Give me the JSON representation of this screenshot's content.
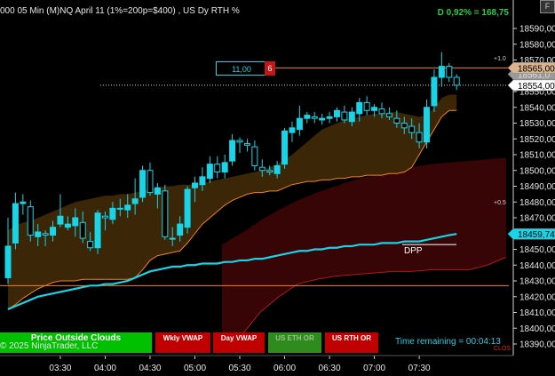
{
  "header": {
    "title": "000 05 Min (M)NQ  April 11 (1%=200p=$400) , US Dy RTH %",
    "pnl": "D 0,92% = 168,75",
    "menu_label": "F"
  },
  "buttons": {
    "price_outside_clouds": "Price Outside Clouds",
    "wkly_vwap": "Wkly VWAP",
    "day_vwap": "Day VWAP",
    "us_eth_or": "US ETH OR",
    "us_rth_or": "US RTH OR"
  },
  "copyright": "© 2025 NinjaTrader, LLC",
  "time_remaining": "Time remaining = 00:04:13",
  "order": {
    "price": "11,00",
    "qty": "6"
  },
  "colors": {
    "background": "#000000",
    "bull_candle": "#19d4e6",
    "bear_candle": "#006a6a",
    "cloud_fill": "#3b2608",
    "cloud_line": "#f5821f",
    "red_cloud": "#3a0505",
    "vwap_line": "#19d4e6",
    "orange_line": "#f5821f",
    "price_label_bg": "#d9b48f"
  },
  "chart_data": {
    "type": "candlestick",
    "title": "000 05 Min (M)NQ  April 11 (1%=200p=$400) , US Dy RTH %",
    "ylim": [
      18383,
      18598
    ],
    "y_ticks": [
      18390,
      18400,
      18410,
      18420,
      18430,
      18440,
      18450,
      18460,
      18470,
      18480,
      18490,
      18500,
      18510,
      18520,
      18530,
      18540,
      18550,
      18560,
      18570,
      18580,
      18590
    ],
    "x_ticks": [
      "03:30",
      "04:00",
      "04:30",
      "05:00",
      "05:30",
      "06:00",
      "06:30",
      "07:00",
      "07:30"
    ],
    "candles": [
      {
        "t": "02:55",
        "o": 18432,
        "h": 18470,
        "l": 18428,
        "c": 18452
      },
      {
        "t": "03:00",
        "o": 18454,
        "h": 18486,
        "l": 18450,
        "c": 18479
      },
      {
        "t": "03:05",
        "o": 18479,
        "h": 18485,
        "l": 18472,
        "c": 18480
      },
      {
        "t": "03:10",
        "o": 18477,
        "h": 18481,
        "l": 18455,
        "c": 18459
      },
      {
        "t": "03:15",
        "o": 18458,
        "h": 18466,
        "l": 18452,
        "c": 18461
      },
      {
        "t": "03:20",
        "o": 18460,
        "h": 18462,
        "l": 18452,
        "c": 18459
      },
      {
        "t": "03:25",
        "o": 18459,
        "h": 18468,
        "l": 18455,
        "c": 18464
      },
      {
        "t": "03:30",
        "o": 18466,
        "h": 18485,
        "l": 18464,
        "c": 18471
      },
      {
        "t": "03:35",
        "o": 18464,
        "h": 18471,
        "l": 18462,
        "c": 18466
      },
      {
        "t": "03:40",
        "o": 18465,
        "h": 18476,
        "l": 18458,
        "c": 18470
      },
      {
        "t": "03:45",
        "o": 18467,
        "h": 18474,
        "l": 18454,
        "c": 18457
      },
      {
        "t": "03:50",
        "o": 18455,
        "h": 18461,
        "l": 18449,
        "c": 18451
      },
      {
        "t": "03:55",
        "o": 18451,
        "h": 18475,
        "l": 18447,
        "c": 18473
      },
      {
        "t": "04:00",
        "o": 18471,
        "h": 18474,
        "l": 18462,
        "c": 18470
      },
      {
        "t": "04:05",
        "o": 18469,
        "h": 18480,
        "l": 18466,
        "c": 18476
      },
      {
        "t": "04:10",
        "o": 18476,
        "h": 18482,
        "l": 18471,
        "c": 18476
      },
      {
        "t": "04:15",
        "o": 18475,
        "h": 18485,
        "l": 18470,
        "c": 18478
      },
      {
        "t": "04:20",
        "o": 18479,
        "h": 18495,
        "l": 18472,
        "c": 18482
      },
      {
        "t": "04:25",
        "o": 18483,
        "h": 18503,
        "l": 18480,
        "c": 18500
      },
      {
        "t": "04:30",
        "o": 18500,
        "h": 18505,
        "l": 18484,
        "c": 18486
      },
      {
        "t": "04:35",
        "o": 18485,
        "h": 18492,
        "l": 18476,
        "c": 18489
      },
      {
        "t": "04:40",
        "o": 18487,
        "h": 18491,
        "l": 18456,
        "c": 18458
      },
      {
        "t": "04:45",
        "o": 18457,
        "h": 18464,
        "l": 18452,
        "c": 18457
      },
      {
        "t": "04:50",
        "o": 18459,
        "h": 18471,
        "l": 18455,
        "c": 18466
      },
      {
        "t": "04:55",
        "o": 18464,
        "h": 18490,
        "l": 18460,
        "c": 18488
      },
      {
        "t": "05:00",
        "o": 18489,
        "h": 18496,
        "l": 18480,
        "c": 18492
      },
      {
        "t": "05:05",
        "o": 18491,
        "h": 18502,
        "l": 18487,
        "c": 18496
      },
      {
        "t": "05:10",
        "o": 18495,
        "h": 18509,
        "l": 18492,
        "c": 18504
      },
      {
        "t": "05:15",
        "o": 18504,
        "h": 18509,
        "l": 18495,
        "c": 18499
      },
      {
        "t": "05:20",
        "o": 18499,
        "h": 18510,
        "l": 18495,
        "c": 18505
      },
      {
        "t": "05:25",
        "o": 18506,
        "h": 18523,
        "l": 18503,
        "c": 18519
      },
      {
        "t": "05:30",
        "o": 18519,
        "h": 18521,
        "l": 18511,
        "c": 18518
      },
      {
        "t": "05:35",
        "o": 18517,
        "h": 18520,
        "l": 18512,
        "c": 18516
      },
      {
        "t": "05:40",
        "o": 18515,
        "h": 18519,
        "l": 18500,
        "c": 18503
      },
      {
        "t": "05:45",
        "o": 18502,
        "h": 18507,
        "l": 18496,
        "c": 18500
      },
      {
        "t": "05:50",
        "o": 18500,
        "h": 18503,
        "l": 18497,
        "c": 18499
      },
      {
        "t": "05:55",
        "o": 18498,
        "h": 18506,
        "l": 18495,
        "c": 18503
      },
      {
        "t": "06:00",
        "o": 18504,
        "h": 18527,
        "l": 18501,
        "c": 18525
      },
      {
        "t": "06:05",
        "o": 18524,
        "h": 18531,
        "l": 18518,
        "c": 18527
      },
      {
        "t": "06:10",
        "o": 18526,
        "h": 18541,
        "l": 18522,
        "c": 18533
      },
      {
        "t": "06:15",
        "o": 18533,
        "h": 18537,
        "l": 18530,
        "c": 18535
      },
      {
        "t": "06:20",
        "o": 18534,
        "h": 18537,
        "l": 18530,
        "c": 18533
      },
      {
        "t": "06:25",
        "o": 18532,
        "h": 18536,
        "l": 18529,
        "c": 18533
      },
      {
        "t": "06:30",
        "o": 18533,
        "h": 18537,
        "l": 18530,
        "c": 18534
      },
      {
        "t": "06:35",
        "o": 18534,
        "h": 18540,
        "l": 18531,
        "c": 18538
      },
      {
        "t": "06:40",
        "o": 18537,
        "h": 18541,
        "l": 18530,
        "c": 18532
      },
      {
        "t": "06:45",
        "o": 18531,
        "h": 18540,
        "l": 18528,
        "c": 18537
      },
      {
        "t": "06:50",
        "o": 18536,
        "h": 18546,
        "l": 18531,
        "c": 18543
      },
      {
        "t": "06:55",
        "o": 18543,
        "h": 18547,
        "l": 18535,
        "c": 18538
      },
      {
        "t": "07:00",
        "o": 18538,
        "h": 18542,
        "l": 18534,
        "c": 18540
      },
      {
        "t": "07:05",
        "o": 18539,
        "h": 18543,
        "l": 18533,
        "c": 18536
      },
      {
        "t": "07:10",
        "o": 18536,
        "h": 18540,
        "l": 18532,
        "c": 18534
      },
      {
        "t": "07:15",
        "o": 18533,
        "h": 18538,
        "l": 18527,
        "c": 18530
      },
      {
        "t": "07:20",
        "o": 18530,
        "h": 18534,
        "l": 18523,
        "c": 18527
      },
      {
        "t": "07:25",
        "o": 18528,
        "h": 18533,
        "l": 18520,
        "c": 18524
      },
      {
        "t": "07:30",
        "o": 18524,
        "h": 18530,
        "l": 18514,
        "c": 18518
      },
      {
        "t": "07:35",
        "o": 18518,
        "h": 18545,
        "l": 18514,
        "c": 18540
      },
      {
        "t": "07:40",
        "o": 18541,
        "h": 18564,
        "l": 18537,
        "c": 18559
      },
      {
        "t": "07:45",
        "o": 18559,
        "h": 18575,
        "l": 18553,
        "c": 18566
      },
      {
        "t": "07:50",
        "o": 18566,
        "h": 18568,
        "l": 18556,
        "c": 18559
      },
      {
        "t": "07:55",
        "o": 18559,
        "h": 18561,
        "l": 18551,
        "c": 18554
      }
    ],
    "cloud_upper": [
      18462,
      18465,
      18467,
      18468,
      18470,
      18472,
      18474,
      18476,
      18478,
      18480,
      18481,
      18482,
      18483,
      18484,
      18484,
      18485,
      18485,
      18486,
      18487,
      18488,
      18489,
      18490,
      18490,
      18491,
      18491,
      18491,
      18492,
      18493,
      18494,
      18495,
      18496,
      18497,
      18498,
      18499,
      18500,
      18502,
      18504,
      18507,
      18510,
      18514,
      18518,
      18522,
      18526,
      18528,
      18530,
      18532,
      18533,
      18534,
      18535,
      18536,
      18536,
      18537,
      18537,
      18536,
      18535,
      18534,
      18535,
      18540,
      18546,
      18548,
      18548
    ],
    "cloud_lower": [
      18412,
      18415,
      18419,
      18422,
      18425,
      18427,
      18429,
      18430,
      18430,
      18430,
      18431,
      18431,
      18431,
      18431,
      18431,
      18431,
      18431,
      18432,
      18437,
      18443,
      18446,
      18447,
      18448,
      18449,
      18454,
      18460,
      18466,
      18470,
      18474,
      18478,
      18481,
      18483,
      18485,
      18486,
      18486,
      18487,
      18487,
      18489,
      18491,
      18492,
      18493,
      18493,
      18494,
      18494,
      18495,
      18495,
      18496,
      18496,
      18497,
      18497,
      18497,
      18498,
      18498,
      18499,
      18502,
      18510,
      18518,
      18526,
      18534,
      18538,
      18538
    ],
    "vwap": [
      18412,
      18414,
      18416,
      18418,
      18420,
      18421,
      18422,
      18423,
      18424,
      18425,
      18426,
      18427,
      18427,
      18428,
      18428,
      18429,
      18430,
      18432,
      18434,
      18436,
      18437,
      18438,
      18439,
      18439,
      18440,
      18440,
      18441,
      18441,
      18441,
      18442,
      18442,
      18443,
      18443,
      18444,
      18444,
      18445,
      18446,
      18447,
      18448,
      18449,
      18449,
      18450,
      18450,
      18451,
      18451,
      18452,
      18452,
      18453,
      18453,
      18453,
      18454,
      18454,
      18454,
      18455,
      18455,
      18455,
      18456,
      18457,
      18458,
      18459,
      18459.74
    ],
    "orange_hline": 18427,
    "dotted_hline": 18554,
    "order_line": 18565,
    "dpp_level": 18453,
    "red_cloud_top": [
      18453,
      18460,
      18468,
      18475,
      18481,
      18486,
      18490,
      18494,
      18497,
      18500,
      18502,
      18504,
      18505,
      18506,
      18507,
      18508
    ],
    "red_cloud_bottom": [
      18390,
      18395,
      18410,
      18420,
      18428,
      18431,
      18433,
      18434,
      18435,
      18436,
      18436,
      18437,
      18437,
      18437,
      18440,
      18445
    ],
    "price_labels": [
      {
        "value": "18565,00",
        "kind": "order"
      },
      {
        "value": "18554,00",
        "kind": "last"
      },
      {
        "value": "18459,74",
        "kind": "vwap"
      },
      {
        "value": "18561,0",
        "kind": "partial"
      }
    ],
    "annotations": [
      "+1.0",
      "+0.5",
      "DPP",
      "CLOS"
    ]
  }
}
